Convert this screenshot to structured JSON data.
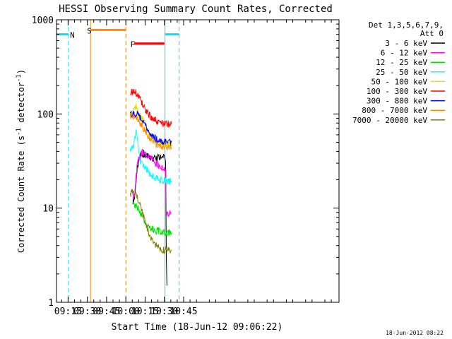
{
  "chart_data": {
    "type": "line",
    "title": "HESSI Observing Summary Count Rates, Corrected",
    "xlabel": "Start Time (18-Jun-12 09:06:22)",
    "ylabel_main": "Corrected Count Rate (s",
    "ylabel_sup1": "-1",
    "ylabel_mid": " detector",
    "ylabel_sup2": "-1",
    "ylabel_end": ")",
    "yscale": "log",
    "ylim": [
      1,
      1000
    ],
    "xlim_min": [
      546,
      766
    ],
    "x_ticks": [
      {
        "m": 555,
        "label": "09:15"
      },
      {
        "m": 570,
        "label": "09:30"
      },
      {
        "m": 585,
        "label": "09:45"
      },
      {
        "m": 600,
        "label": "10:00"
      },
      {
        "m": 615,
        "label": "10:15"
      },
      {
        "m": 630,
        "label": "10:30"
      },
      {
        "m": 645,
        "label": "10:45"
      }
    ],
    "y_ticks": [
      {
        "v": 1,
        "label": "1"
      },
      {
        "v": 10,
        "label": "10"
      },
      {
        "v": 100,
        "label": "100"
      },
      {
        "v": 1000,
        "label": "1000"
      }
    ],
    "legend_header": [
      "Det 1,3,5,6,7,9,",
      "Att 0"
    ],
    "series": [
      {
        "name": "3 - 6 keV",
        "color": "#000000",
        "points": [
          [
            605.5,
            12
          ],
          [
            607,
            13
          ],
          [
            608,
            20
          ],
          [
            609,
            28
          ],
          [
            610,
            32
          ],
          [
            611,
            35
          ],
          [
            612,
            37
          ],
          [
            613,
            36
          ],
          [
            614,
            38
          ],
          [
            616,
            36
          ],
          [
            618,
            34
          ],
          [
            620,
            33
          ],
          [
            622,
            33
          ],
          [
            624,
            34
          ],
          [
            626,
            35
          ],
          [
            628,
            34
          ],
          [
            629,
            36
          ],
          [
            630,
            34
          ],
          [
            631,
            30
          ],
          [
            631.5,
            3
          ],
          [
            632,
            1.5
          ]
        ]
      },
      {
        "name": "6 - 12 keV",
        "color": "#ff00ff",
        "points": [
          [
            605.5,
            13
          ],
          [
            607,
            14
          ],
          [
            608,
            22
          ],
          [
            609,
            28
          ],
          [
            610,
            33
          ],
          [
            612,
            38
          ],
          [
            614,
            40
          ],
          [
            615,
            39
          ],
          [
            617,
            36
          ],
          [
            619,
            34
          ],
          [
            621,
            32
          ],
          [
            623,
            30
          ],
          [
            625,
            29
          ],
          [
            627,
            28
          ],
          [
            629,
            27
          ],
          [
            630,
            27
          ],
          [
            631,
            25
          ],
          [
            631.5,
            9
          ],
          [
            633,
            8.5
          ],
          [
            635.5,
            9
          ]
        ]
      },
      {
        "name": "12 - 25 keV",
        "color": "#00e000",
        "points": [
          [
            605.5,
            11
          ],
          [
            607,
            10.5
          ],
          [
            608,
            11
          ],
          [
            609,
            10
          ],
          [
            610,
            9.5
          ],
          [
            611,
            9
          ],
          [
            613,
            8
          ],
          [
            615,
            7
          ],
          [
            617,
            6.5
          ],
          [
            619,
            6
          ],
          [
            621,
            6
          ],
          [
            623,
            5.8
          ],
          [
            625,
            5.7
          ],
          [
            627,
            5.6
          ],
          [
            629,
            5.5
          ],
          [
            631,
            5.5
          ],
          [
            633,
            5.5
          ],
          [
            635.5,
            5.5
          ]
        ]
      },
      {
        "name": "25 - 50 keV",
        "color": "#00ffff",
        "points": [
          [
            603.5,
            42
          ],
          [
            605,
            42
          ],
          [
            606,
            45
          ],
          [
            607,
            55
          ],
          [
            608,
            68
          ],
          [
            609,
            52
          ],
          [
            610,
            38
          ],
          [
            611,
            33
          ],
          [
            612,
            30
          ],
          [
            614,
            28
          ],
          [
            616,
            26
          ],
          [
            618,
            24
          ],
          [
            620,
            22
          ],
          [
            622,
            21
          ],
          [
            624,
            20.5
          ],
          [
            626,
            20
          ],
          [
            628,
            20
          ],
          [
            630,
            19.5
          ],
          [
            632,
            19.5
          ],
          [
            635.5,
            19.5
          ]
        ]
      },
      {
        "name": "50 - 100 keV",
        "color": "#e0e000",
        "points": [
          [
            603.5,
            95
          ],
          [
            605,
            98
          ],
          [
            606,
            105
          ],
          [
            607,
            115
          ],
          [
            608,
            125
          ],
          [
            609,
            110
          ],
          [
            610,
            100
          ],
          [
            612,
            90
          ],
          [
            614,
            82
          ],
          [
            616,
            72
          ],
          [
            618,
            62
          ],
          [
            620,
            55
          ],
          [
            622,
            52
          ],
          [
            624,
            50
          ],
          [
            626,
            49
          ],
          [
            628,
            48
          ],
          [
            630,
            47
          ],
          [
            632,
            47
          ],
          [
            635.5,
            47
          ]
        ]
      },
      {
        "name": "100 - 300 keV",
        "color": "#ff0000",
        "points": [
          [
            603.5,
            170
          ],
          [
            605,
            170
          ],
          [
            606,
            172
          ],
          [
            607,
            170
          ],
          [
            608,
            165
          ],
          [
            609,
            160
          ],
          [
            610,
            150
          ],
          [
            612,
            135
          ],
          [
            614,
            120
          ],
          [
            616,
            108
          ],
          [
            618,
            98
          ],
          [
            620,
            92
          ],
          [
            622,
            88
          ],
          [
            624,
            85
          ],
          [
            626,
            82
          ],
          [
            628,
            80
          ],
          [
            630,
            78
          ],
          [
            632,
            78
          ],
          [
            635.5,
            78
          ]
        ]
      },
      {
        "name": "300 - 800 keV",
        "color": "#0000ff",
        "points": [
          [
            603.5,
            100
          ],
          [
            605,
            100
          ],
          [
            606,
            102
          ],
          [
            607,
            101
          ],
          [
            608,
            100
          ],
          [
            609,
            98
          ],
          [
            610,
            95
          ],
          [
            612,
            88
          ],
          [
            614,
            80
          ],
          [
            616,
            72
          ],
          [
            618,
            65
          ],
          [
            620,
            60
          ],
          [
            622,
            56
          ],
          [
            624,
            54
          ],
          [
            626,
            52
          ],
          [
            628,
            51
          ],
          [
            630,
            50
          ],
          [
            632,
            50
          ],
          [
            635.5,
            50
          ]
        ]
      },
      {
        "name": "800 - 7000 keV",
        "color": "#ff8c00",
        "points": [
          [
            603.5,
            96
          ],
          [
            605,
            95
          ],
          [
            606,
            93
          ],
          [
            607,
            92
          ],
          [
            608,
            90
          ],
          [
            609,
            88
          ],
          [
            610,
            85
          ],
          [
            612,
            78
          ],
          [
            614,
            70
          ],
          [
            616,
            63
          ],
          [
            618,
            57
          ],
          [
            620,
            52
          ],
          [
            622,
            49
          ],
          [
            624,
            47
          ],
          [
            626,
            46
          ],
          [
            628,
            45
          ],
          [
            630,
            44
          ],
          [
            632,
            44
          ],
          [
            635.5,
            44
          ]
        ]
      },
      {
        "name": "7000 - 20000 keV",
        "color": "#808000",
        "points": [
          [
            603.5,
            14
          ],
          [
            605,
            14.5
          ],
          [
            606,
            15
          ],
          [
            607,
            14
          ],
          [
            608,
            13.5
          ],
          [
            609,
            13
          ],
          [
            610,
            12
          ],
          [
            612,
            10
          ],
          [
            614,
            8
          ],
          [
            616,
            6.5
          ],
          [
            618,
            5.5
          ],
          [
            620,
            4.8
          ],
          [
            622,
            4.3
          ],
          [
            624,
            4
          ],
          [
            626,
            3.8
          ],
          [
            628,
            3.7
          ],
          [
            630,
            3.6
          ],
          [
            632,
            3.6
          ],
          [
            635.5,
            3.6
          ]
        ]
      }
    ],
    "annotations": [
      {
        "label": "N",
        "color": "#00e0ff",
        "x0": 546,
        "x1": 555.3,
        "v": 700,
        "vlines": [
          {
            "m": 546,
            "dash": false
          },
          {
            "m": 555.3,
            "dash": true
          }
        ],
        "x_label": 556.5
      },
      {
        "label": "S",
        "color": "#ff8c00",
        "x0": 572.5,
        "x1": 600,
        "v": 780,
        "vlines": [
          {
            "m": 572.5,
            "dash": false
          },
          {
            "m": 600,
            "dash": true
          }
        ],
        "x_label": 569.8
      },
      {
        "label": "F",
        "color": "#ff0000",
        "x0": 606.5,
        "x1": 630,
        "v": 560,
        "vlines": [],
        "x_label": 603.5
      },
      {
        "label": "",
        "color": "#00e0ff",
        "x0": 630.5,
        "x1": 641.5,
        "v": 700,
        "vlines": [
          {
            "m": 630.5,
            "dash": false
          },
          {
            "m": 641.5,
            "dash": true
          }
        ],
        "x_label": 0
      }
    ],
    "footer_date": "18-Jun-2012 08:22"
  }
}
